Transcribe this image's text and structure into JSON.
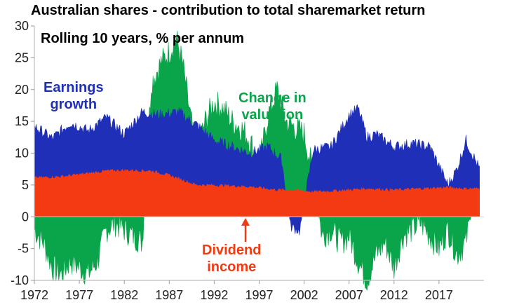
{
  "chart_data": {
    "type": "area",
    "title": "Australian shares - contribution to total sharemarket return",
    "subtitle": "Rolling 10 years, % per annum",
    "xlabel": "",
    "ylabel": "",
    "xlim": [
      1972,
      2022
    ],
    "ylim": [
      -10,
      30
    ],
    "y_ticks": [
      -10,
      -5,
      0,
      5,
      10,
      15,
      20,
      25,
      30
    ],
    "x_ticks": [
      1972,
      1977,
      1982,
      1987,
      1992,
      1997,
      2002,
      2007,
      2012,
      2017
    ],
    "x_tick_labels": [
      "1972",
      "1977",
      "1982",
      "1987",
      "1992",
      "1997",
      "2002",
      "2007",
      "2012",
      "2017"
    ],
    "annotations": {
      "earnings": [
        "Earnings",
        "growth"
      ],
      "valuation": [
        "Change in",
        "valuation"
      ],
      "dividend": [
        "Dividend",
        "income"
      ]
    },
    "series": [
      {
        "name": "Dividend income",
        "color": "#f43a12",
        "x": [
          1972,
          1975,
          1978,
          1980,
          1982,
          1985,
          1987,
          1990,
          1993,
          1996,
          1999,
          2001,
          2003,
          2006,
          2009,
          2012,
          2015,
          2018,
          2020,
          2021.5
        ],
        "values": [
          6.1,
          6.3,
          6.8,
          7.2,
          7.3,
          7.2,
          6.5,
          5.0,
          4.9,
          4.7,
          4.2,
          4.2,
          3.9,
          4.1,
          4.4,
          4.2,
          4.4,
          4.6,
          4.4,
          4.4
        ]
      },
      {
        "name": "Earnings growth",
        "color": "#1f2fb8",
        "x": [
          1972,
          1974,
          1976,
          1978,
          1980,
          1982,
          1984,
          1986,
          1988,
          1990,
          1992,
          1994,
          1996,
          1998,
          1999.5,
          2000.5,
          2001.5,
          2003,
          2005,
          2007,
          2008,
          2009,
          2010,
          2012,
          2014,
          2016,
          2017,
          2018,
          2019,
          2020,
          2021.5
        ],
        "values": [
          14.2,
          12.3,
          14.8,
          13.5,
          15.6,
          13.0,
          16.5,
          16.0,
          16.5,
          14.5,
          12.0,
          11.0,
          10.0,
          11.0,
          9.0,
          -1.5,
          -2.2,
          10.5,
          11.0,
          16.0,
          17.0,
          12.5,
          13.0,
          11.0,
          11.5,
          11.0,
          8.0,
          5.0,
          7.5,
          12.0,
          7.5
        ]
      },
      {
        "name": "Change in valuation",
        "color": "#0aa54a",
        "x": [
          1972,
          1973,
          1974,
          1975,
          1976,
          1977,
          1978,
          1979,
          1980,
          1981,
          1982,
          1983,
          1984,
          1985,
          1986,
          1987,
          1987.8,
          1988.5,
          1989,
          1990,
          1991,
          1992,
          1993,
          1994,
          1995,
          1996,
          1997,
          1998,
          1999,
          2000,
          2001,
          2002,
          2003,
          2004,
          2005,
          2006,
          2007,
          2008,
          2009,
          2010,
          2011,
          2012,
          2013,
          2014,
          2015,
          2016,
          2017,
          2018,
          2019,
          2020,
          2021.5
        ],
        "values": [
          -2,
          -4,
          -8,
          -9,
          -7,
          -8,
          -9,
          -7,
          -2,
          -1,
          -2,
          -3,
          -4,
          21,
          24,
          26,
          28,
          24,
          19,
          10,
          15,
          18,
          17,
          15,
          14,
          12,
          8,
          16,
          20,
          15,
          14,
          13,
          7,
          -3,
          -2,
          -4,
          -3,
          -7,
          -10,
          -6,
          -4,
          -8,
          -3,
          -2,
          -1,
          -3,
          -5,
          -2,
          -6,
          -4,
          8.5
        ]
      }
    ]
  }
}
